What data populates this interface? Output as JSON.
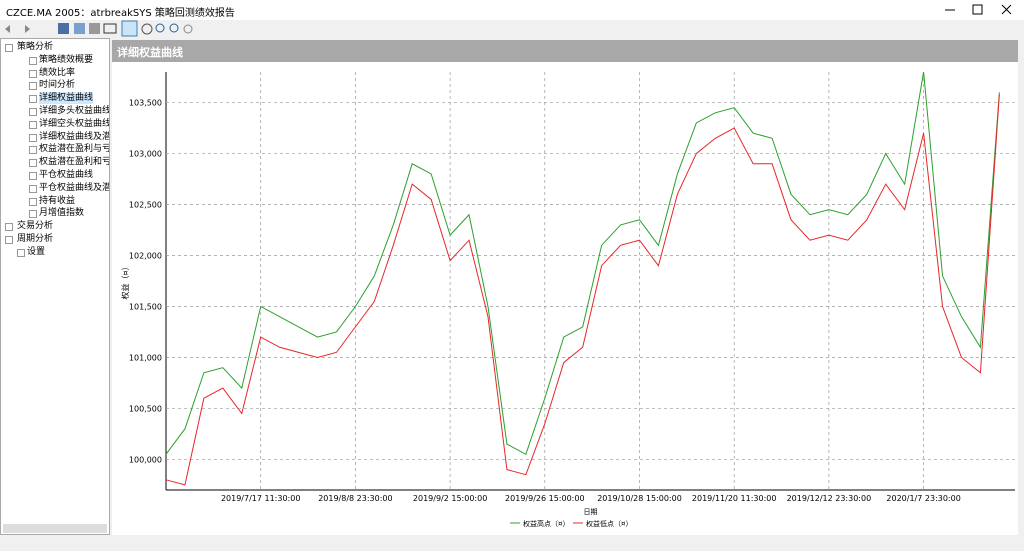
{
  "window": {
    "title": "CZCE.MA 2005：atrbreakSYS 策略回测绩效报告"
  },
  "tree": {
    "groups": [
      {
        "label": "策略分析",
        "items": [
          "策略绩效概要",
          "绩效比率",
          "时间分析",
          "详细权益曲线",
          "详细多头权益曲线",
          "详细空头权益曲线",
          "详细权益曲线及潜在",
          "权益潜在盈利与亏损",
          "权益潜在盈利和亏损",
          "平仓权益曲线",
          "平仓权益曲线及潜在",
          "持有收益",
          "月增值指数"
        ]
      },
      {
        "label": "交易分析",
        "items": []
      },
      {
        "label": "周期分析",
        "items": []
      }
    ],
    "settings": "设置",
    "selected": "详细权益曲线"
  },
  "panel": {
    "title": "详细权益曲线"
  },
  "chart_data": {
    "type": "line",
    "y_label": "权益（¤）",
    "x_label": "日期",
    "categories": [
      null,
      null,
      null,
      null,
      null,
      "2019/7/17 11:30:00",
      null,
      null,
      null,
      null,
      "2019/8/8 23:30:00",
      null,
      null,
      null,
      null,
      "2019/9/2 15:00:00",
      null,
      null,
      null,
      null,
      "2019/9/26 15:00:00",
      null,
      null,
      null,
      null,
      "2019/10/28 15:00:00",
      null,
      null,
      null,
      null,
      "2019/11/20 11:30:00",
      null,
      null,
      null,
      null,
      "2019/12/12 23:30:00",
      null,
      null,
      null,
      null,
      "2020/1/7 23:30:00",
      null,
      null,
      null,
      null
    ],
    "series": [
      {
        "name": "权益高点（¤）",
        "color": "#2ca02c",
        "values": [
          100050,
          100300,
          100850,
          100900,
          100700,
          101500,
          101400,
          101300,
          101200,
          101250,
          101500,
          101800,
          102300,
          102900,
          102800,
          102200,
          102400,
          101500,
          100150,
          100050,
          100600,
          101200,
          101300,
          102100,
          102300,
          102350,
          102100,
          102800,
          103300,
          103400,
          103450,
          103200,
          103150,
          102600,
          102400,
          102450,
          102400,
          102600,
          103000,
          102700,
          103800,
          101800,
          101400,
          101100,
          103600
        ]
      },
      {
        "name": "权益低点（¤）",
        "color": "#e8262a",
        "values": [
          99800,
          99750,
          100600,
          100700,
          100450,
          101200,
          101100,
          101050,
          101000,
          101050,
          101300,
          101550,
          102100,
          102700,
          102550,
          101950,
          102150,
          101400,
          99900,
          99850,
          100350,
          100950,
          101100,
          101900,
          102100,
          102150,
          101900,
          102600,
          103000,
          103150,
          103250,
          102900,
          102900,
          102350,
          102150,
          102200,
          102150,
          102350,
          102700,
          102450,
          103200,
          101500,
          101000,
          100850,
          103580
        ]
      }
    ],
    "ylim": [
      99700,
      103800
    ],
    "yticks": [
      {
        "value": 100000,
        "label": "100,000"
      },
      {
        "value": 100500,
        "label": "100,500"
      },
      {
        "value": 101000,
        "label": "101,000"
      },
      {
        "value": 101500,
        "label": "101,500"
      },
      {
        "value": 102000,
        "label": "102,000"
      },
      {
        "value": 102500,
        "label": "102,500"
      },
      {
        "value": 103000,
        "label": "103,000"
      },
      {
        "value": 103500,
        "label": "103,500"
      }
    ],
    "grid": true,
    "legend": "bottom"
  }
}
